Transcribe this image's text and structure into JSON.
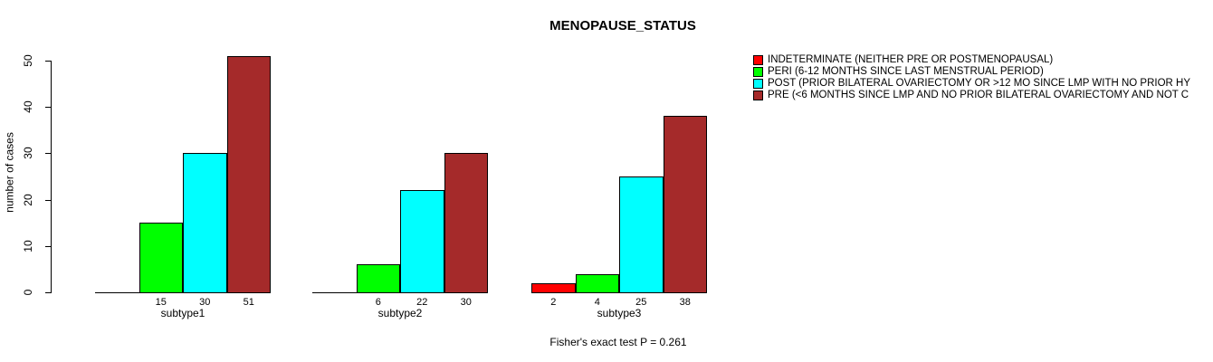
{
  "chart_data": {
    "type": "bar",
    "title": "MENOPAUSE_STATUS",
    "ylabel": "number of cases",
    "ylim": [
      0,
      50
    ],
    "yticks": [
      0,
      10,
      20,
      30,
      40,
      50
    ],
    "grid": false,
    "legend_position": "right",
    "categories": [
      "subtype1",
      "subtype2",
      "subtype3"
    ],
    "series": [
      {
        "name": "INDETERMINATE (NEITHER PRE OR POSTMENOPAUSAL)",
        "color": "#FF0000",
        "values": [
          0,
          0,
          2
        ]
      },
      {
        "name": "PERI (6-12 MONTHS SINCE LAST MENSTRUAL PERIOD)",
        "color": "#00FF00",
        "values": [
          15,
          6,
          4
        ]
      },
      {
        "name": "POST (PRIOR BILATERAL OVARIECTOMY OR >12 MO SINCE LMP WITH NO PRIOR HY",
        "color": "#00FFFF",
        "values": [
          30,
          22,
          25
        ]
      },
      {
        "name": "PRE (<6 MONTHS SINCE LMP AND NO PRIOR BILATERAL OVARIECTOMY AND NOT C",
        "color": "#A52A2A",
        "values": [
          51,
          30,
          38
        ]
      }
    ],
    "bar_value_labels": [
      [
        "",
        "15",
        "30",
        "51"
      ],
      [
        "",
        "6",
        "22",
        "30"
      ],
      [
        "2",
        "4",
        "25",
        "38"
      ]
    ],
    "caption": "Fisher's exact test P = 0.261"
  }
}
